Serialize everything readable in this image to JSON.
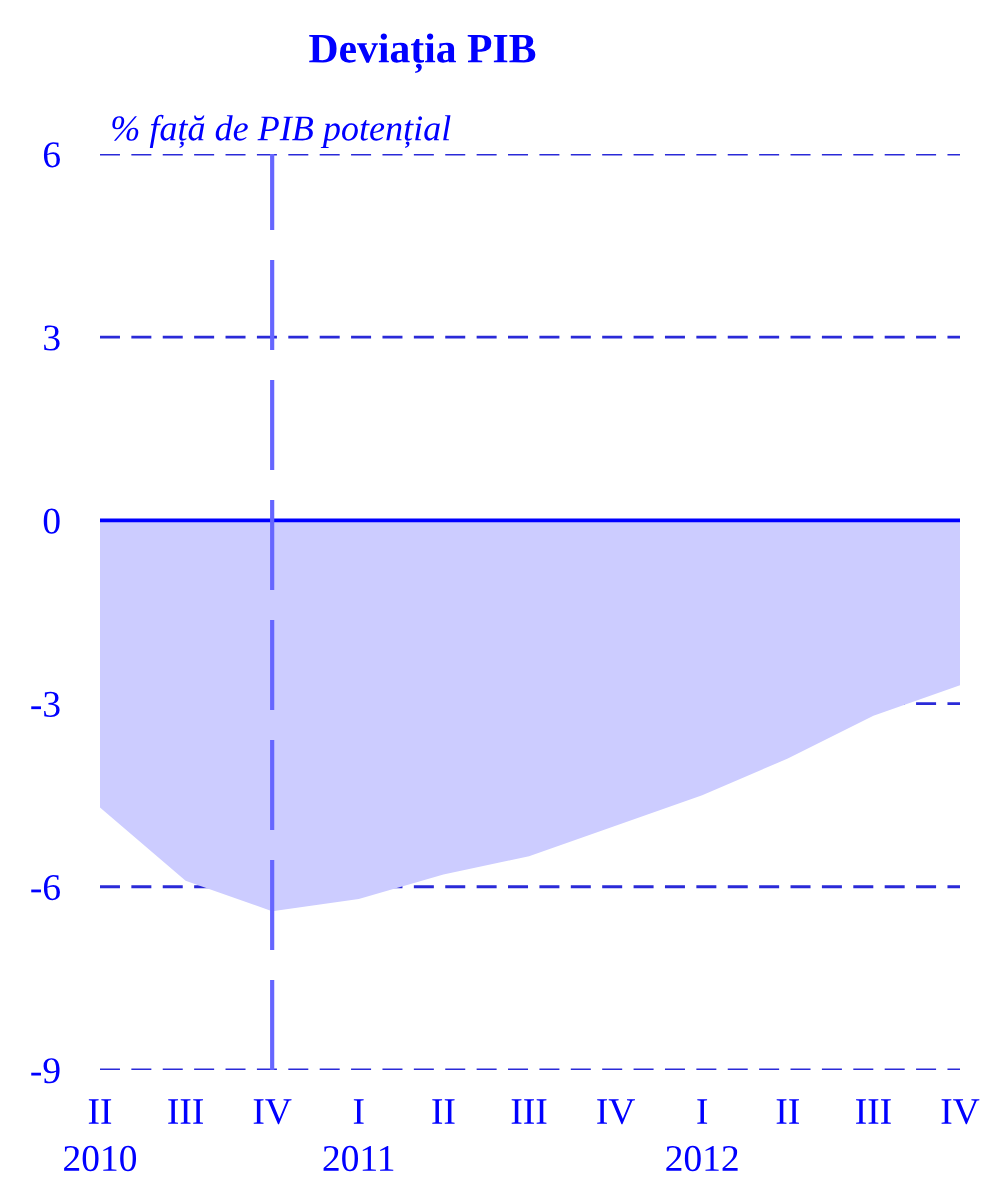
{
  "chart_data": {
    "type": "area",
    "title": "Deviația PIB",
    "ylabel": "% față de PIB potențial",
    "x": [
      "2010-04",
      "2010-07",
      "2010-10",
      "2011-01",
      "2011-04",
      "2011-07",
      "2011-10",
      "2012-01",
      "2012-04",
      "2012-07",
      "2012-10"
    ],
    "values": [
      -4.7,
      -5.9,
      -6.4,
      -6.2,
      -5.8,
      -5.5,
      -5.0,
      -4.5,
      -3.9,
      -3.2,
      -2.7
    ],
    "color": "#ccccff",
    "xlim": [
      "2010-04",
      "2012-10"
    ],
    "xticks": [
      {
        "value": "2010-04",
        "label": "II\n2010"
      },
      {
        "value": "2010-07",
        "label": "III"
      },
      {
        "value": "2010-10",
        "label": "IV"
      },
      {
        "value": "2011-01",
        "label": "I\n2011"
      },
      {
        "value": "2011-04",
        "label": "II"
      },
      {
        "value": "2011-07",
        "label": "III"
      },
      {
        "value": "2011-10",
        "label": "IV"
      },
      {
        "value": "2012-01",
        "label": "I\n2012"
      },
      {
        "value": "2012-04",
        "label": "II"
      },
      {
        "value": "2012-07",
        "label": "III"
      },
      {
        "value": "2012-10",
        "label": "IV"
      }
    ],
    "ylim": [
      -9,
      6
    ],
    "yticks": [
      -9,
      -6,
      -3,
      0,
      3,
      6
    ],
    "grid": "y",
    "ref_lines": [
      {
        "axis": "y",
        "value": 0,
        "color": "#0000ff",
        "line_style": "solid"
      },
      {
        "axis": "x",
        "value": "2010-10",
        "color": "#6666ff",
        "line_style": "dashed"
      }
    ]
  }
}
